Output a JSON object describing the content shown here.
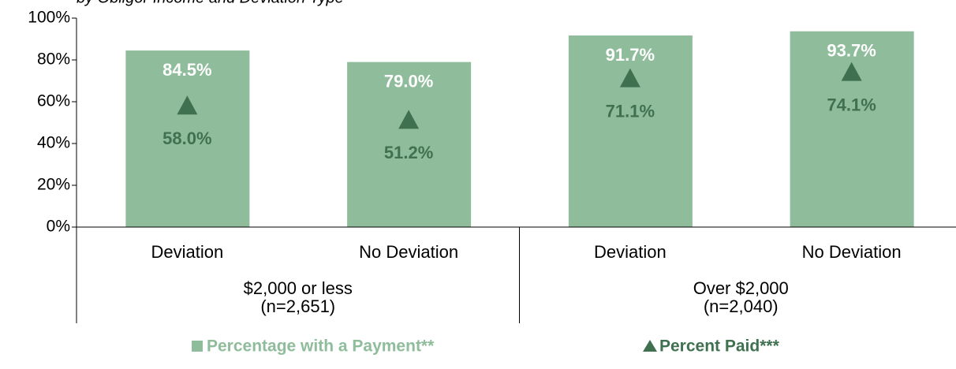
{
  "chart_data": {
    "type": "bar",
    "subtitle": "by Obligor  Income and Deviation Type",
    "categories": [
      "Deviation",
      "No Deviation",
      "Deviation",
      "No Deviation"
    ],
    "groups": [
      {
        "label": "$2,000 or less",
        "n": "(n=2,651)"
      },
      {
        "label": "Over $2,000",
        "n": "(n=2,040)"
      }
    ],
    "series": [
      {
        "name": "Percentage with a Payment**",
        "color": "#8fbc9b",
        "marker": "bar",
        "values": [
          84.5,
          79.0,
          91.7,
          93.7
        ],
        "value_labels": [
          "84.5%",
          "79.0%",
          "91.7%",
          "93.7%"
        ]
      },
      {
        "name": "Percent Paid***",
        "color": "#3f7150",
        "marker": "triangle",
        "values": [
          58.0,
          51.2,
          71.1,
          74.1
        ],
        "value_labels": [
          "58.0%",
          "51.2%",
          "71.1%",
          "74.1%"
        ]
      }
    ],
    "ylim": [
      0,
      100
    ],
    "yticks": [
      {
        "value": 0,
        "label": "0%"
      },
      {
        "value": 20,
        "label": "20%"
      },
      {
        "value": 40,
        "label": "40%"
      },
      {
        "value": 60,
        "label": "60%"
      },
      {
        "value": 80,
        "label": "80%"
      },
      {
        "value": 100,
        "label": "100%"
      }
    ]
  }
}
